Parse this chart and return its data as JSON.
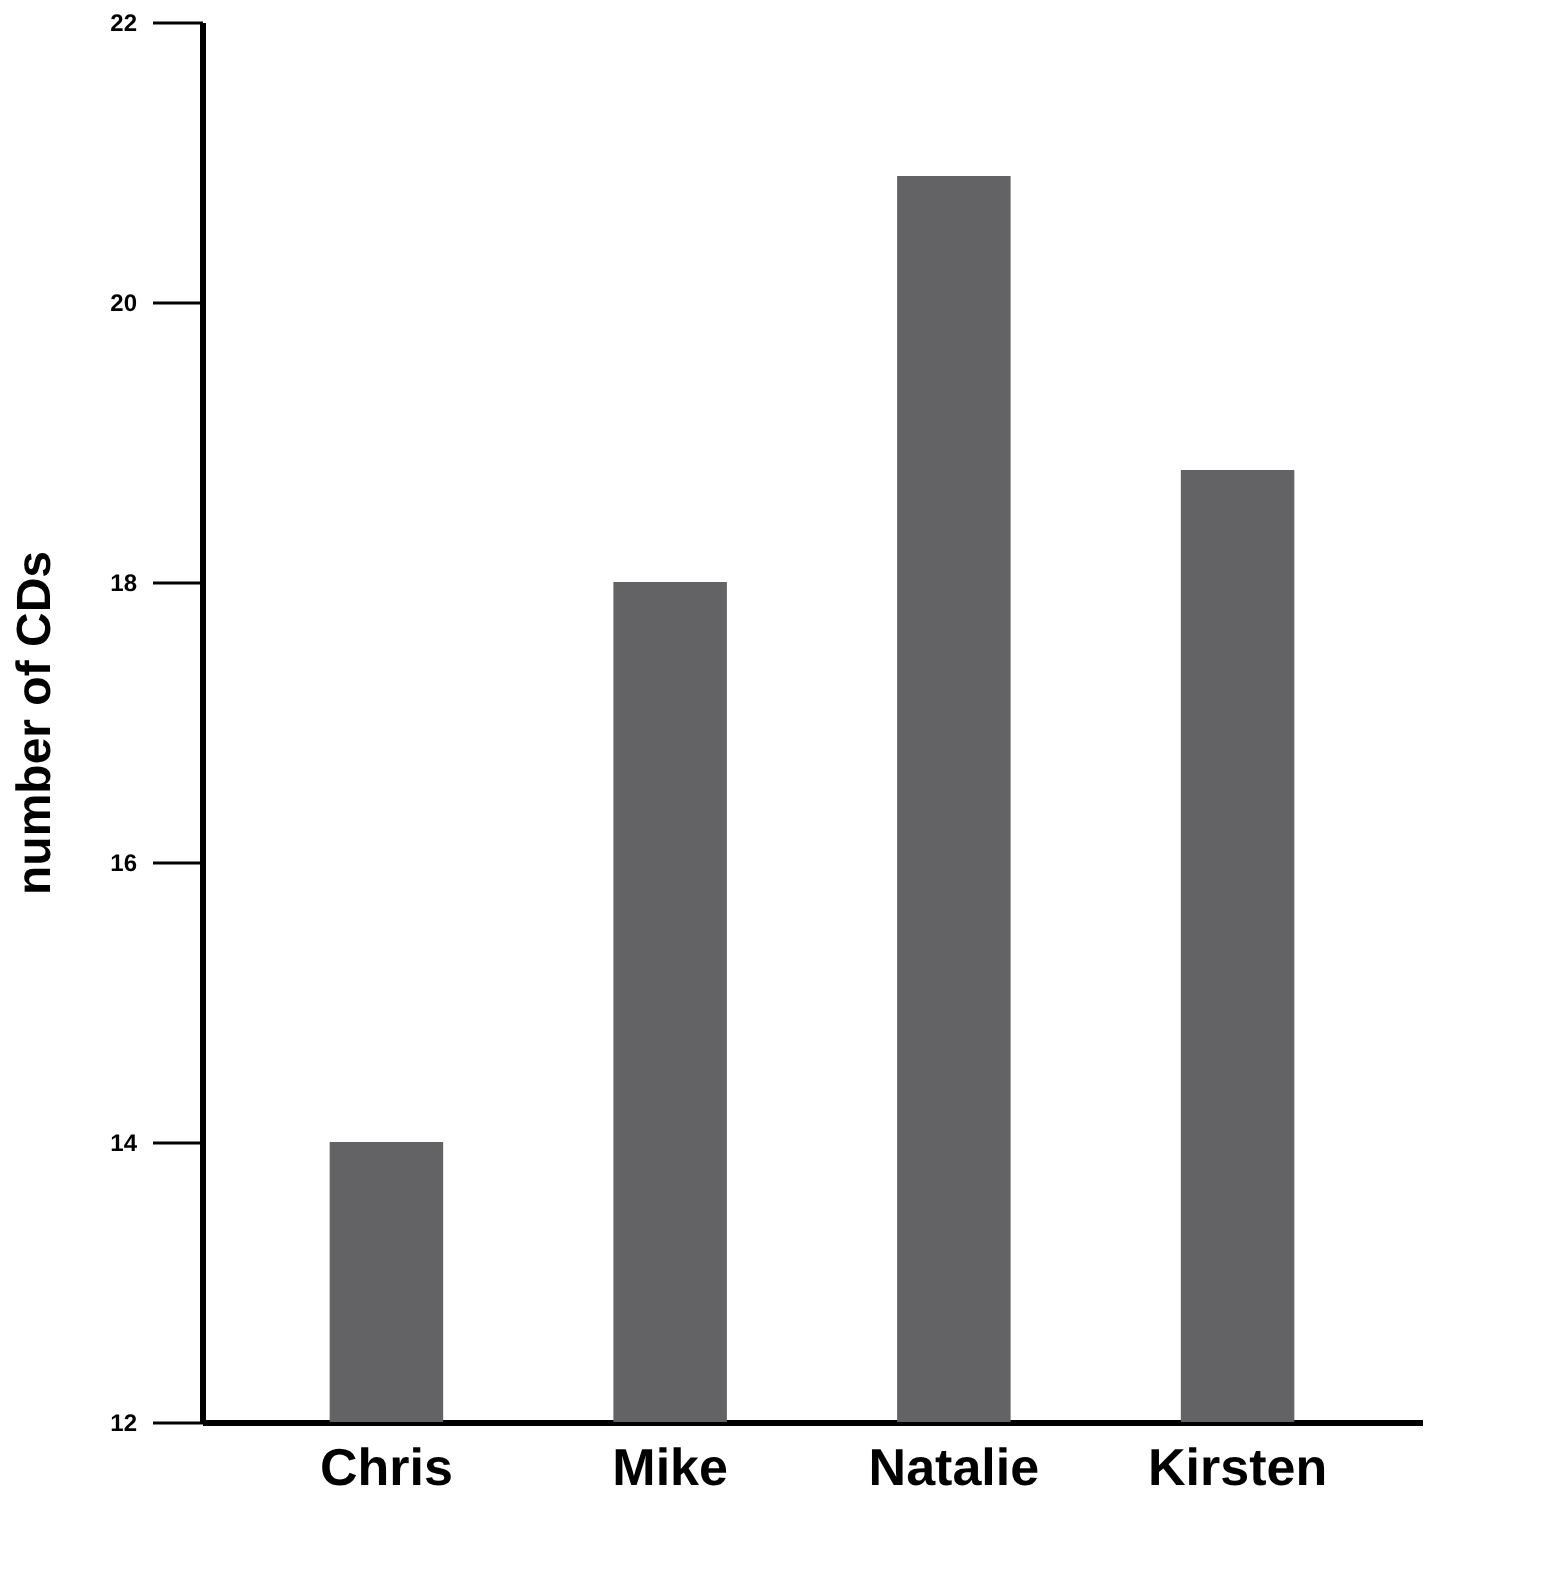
{
  "chart_data": {
    "type": "bar",
    "ylabel": "number of CDs",
    "categories": [
      "Chris",
      "Mike",
      "Natalie",
      "Kirsten"
    ],
    "values": [
      14,
      18,
      20.9,
      18.8
    ],
    "color": "#636264",
    "ylim": [
      12,
      22
    ],
    "yticks": [
      12,
      14,
      16,
      18,
      20,
      22
    ],
    "grid": false
  }
}
